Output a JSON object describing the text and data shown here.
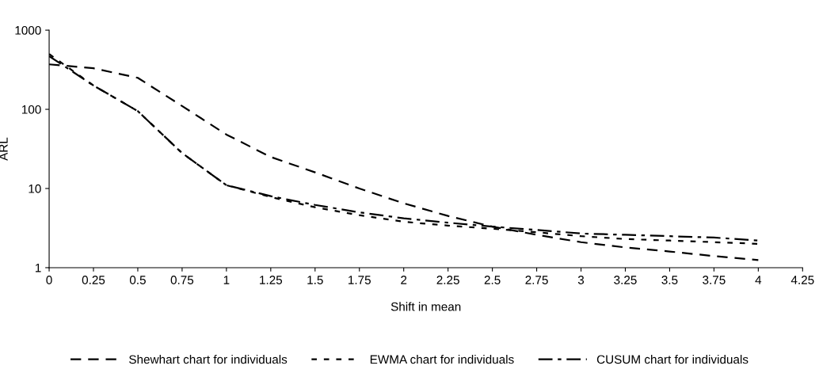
{
  "chart_data": {
    "type": "line",
    "xlabel": "Shift in mean",
    "ylabel": "ARL",
    "log": "y",
    "x": [
      0,
      0.25,
      0.5,
      0.75,
      1,
      1.25,
      1.5,
      1.75,
      2,
      2.25,
      2.5,
      2.75,
      3,
      3.25,
      3.5,
      3.75,
      4
    ],
    "series": [
      {
        "name": "Shewhart chart for individuals",
        "color": "#000000",
        "line_style": "dashed",
        "values": [
          370,
          330,
          250,
          110,
          48,
          25,
          16,
          10,
          6.5,
          4.5,
          3.3,
          2.6,
          2.1,
          1.8,
          1.6,
          1.4,
          1.25
        ]
      },
      {
        "name": "EWMA chart for individuals",
        "color": "#000000",
        "line_style": "dotted",
        "values": [
          500,
          200,
          95,
          28,
          11,
          7.8,
          5.8,
          4.6,
          3.8,
          3.4,
          3.1,
          2.8,
          2.5,
          2.3,
          2.2,
          2.1,
          2.0
        ]
      },
      {
        "name": "CUSUM chart for individuals",
        "color": "#000000",
        "line_style": "dashdot",
        "values": [
          470,
          200,
          95,
          28,
          11,
          8,
          6.2,
          5,
          4.2,
          3.7,
          3.3,
          3.0,
          2.7,
          2.6,
          2.5,
          2.4,
          2.2
        ]
      }
    ],
    "xlim": [
      0,
      4.25
    ],
    "xticks": [
      0,
      0.25,
      0.5,
      0.75,
      1,
      1.25,
      1.5,
      1.75,
      2,
      2.25,
      2.5,
      2.75,
      3,
      3.25,
      3.5,
      3.75,
      4,
      4.25
    ],
    "ylim": [
      1,
      1000
    ],
    "yticks": [
      1,
      10,
      100,
      1000
    ],
    "grid": false,
    "legend": "bottom",
    "marker": "none"
  }
}
